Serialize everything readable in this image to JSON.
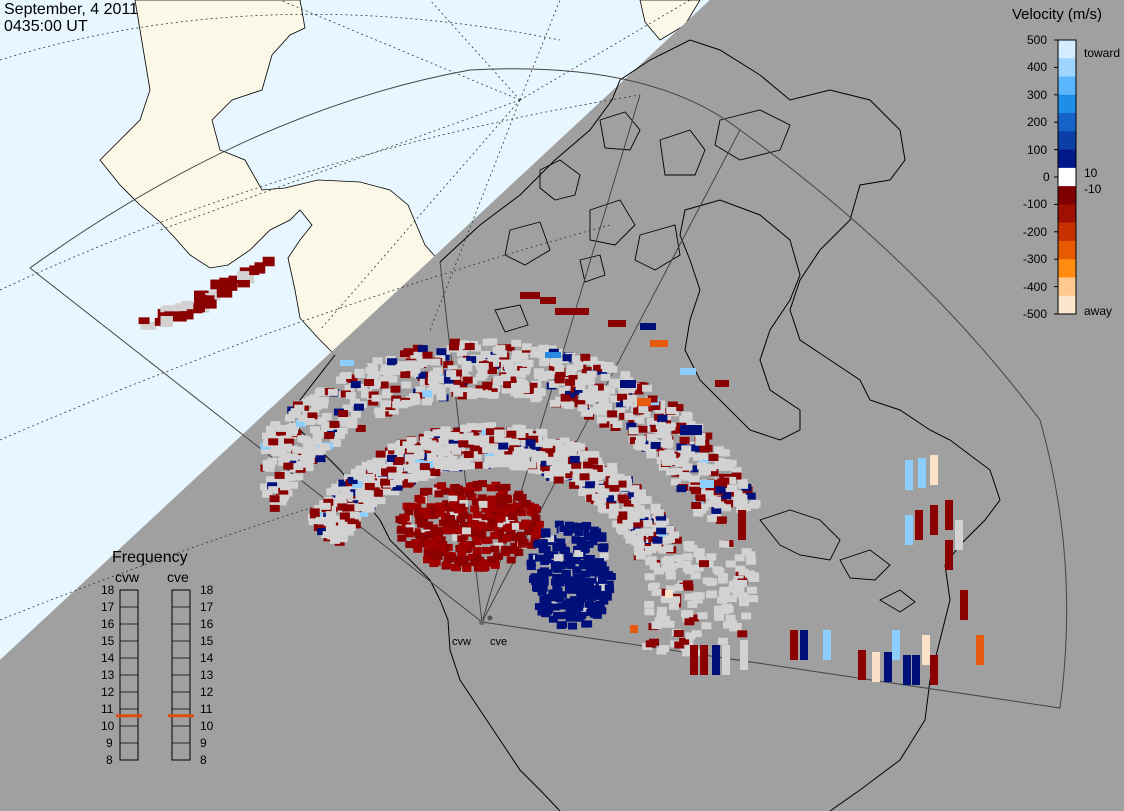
{
  "header": {
    "date": "September, 4 2011",
    "time": "0435:00 UT"
  },
  "colorbar": {
    "title": "Velocity (m/s)",
    "ticks": [
      "500",
      "400",
      "300",
      "200",
      "100",
      "0",
      "-100",
      "-200",
      "-300",
      "-400",
      "-500"
    ],
    "inner_ticks": [
      "10",
      "-10"
    ],
    "toward_label": "toward",
    "away_label": "away",
    "colors": [
      "#d4ecff",
      "#9fd4ff",
      "#5ab6ff",
      "#1e8fe8",
      "#1562c8",
      "#0c3ea8",
      "#00188a",
      "#ffffff",
      "#800000",
      "#a01000",
      "#c83000",
      "#e85a00",
      "#ff8c10",
      "#ffc890",
      "#fde7cc"
    ]
  },
  "frequency_panel": {
    "title": "Frequency",
    "radar_names": [
      "cvw",
      "cve"
    ],
    "ticks": [
      "18",
      "17",
      "16",
      "15",
      "14",
      "13",
      "12",
      "11",
      "10",
      "9",
      "8"
    ],
    "selected_mhz": [
      10.6,
      10.6
    ],
    "marker_color": "#e04a10"
  },
  "radar_sites": [
    "cvw",
    "cve"
  ],
  "map_colors": {
    "ocean": "#e8f6ff",
    "land": "#fbf8e8",
    "night": "#a0a0a0",
    "ground_scatter": "#d2d2d2"
  }
}
